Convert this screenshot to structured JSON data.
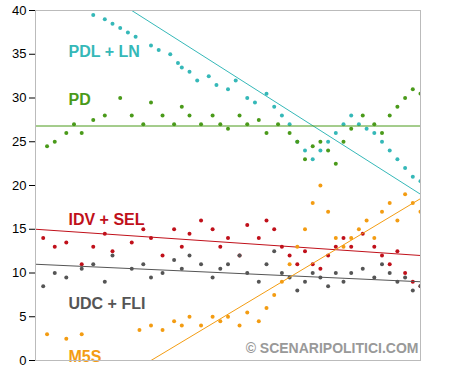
{
  "chart_data": {
    "type": "scatter",
    "xlim": [
      0,
      100
    ],
    "ylim": [
      0,
      40
    ],
    "yticks": [
      0,
      5,
      10,
      15,
      20,
      25,
      30,
      35,
      40
    ],
    "tick_labels": "y",
    "grid": false,
    "annotations": [
      "© SCENARIPOLITICI.COM"
    ],
    "series": [
      {
        "name": "PDL + LN",
        "color": "#35b8b8",
        "x": [
          15,
          18,
          20,
          22,
          24,
          26,
          30,
          32,
          35,
          37,
          38,
          40,
          42,
          45,
          47,
          50,
          52,
          55,
          57,
          60,
          62,
          64,
          66,
          68,
          70,
          72,
          74,
          76,
          78,
          80,
          82,
          84,
          86,
          88,
          90,
          92,
          94,
          96,
          98,
          100
        ],
        "values": [
          39.5,
          39,
          38.5,
          38,
          37.5,
          37,
          36,
          35.5,
          35,
          34,
          33.5,
          33,
          32,
          32.5,
          31.5,
          31,
          32,
          30,
          29.5,
          30.5,
          29,
          28,
          27,
          25,
          24,
          23,
          24,
          25,
          26,
          27,
          28,
          27,
          26.5,
          26,
          25,
          24,
          23,
          22,
          21,
          20.5
        ],
        "trend": {
          "x": [
            25,
            100
          ],
          "values": [
            40,
            19
          ]
        }
      },
      {
        "name": "PD",
        "color": "#4a9a1a",
        "x": [
          3,
          5,
          8,
          10,
          12,
          15,
          18,
          22,
          25,
          28,
          30,
          33,
          36,
          38,
          40,
          43,
          46,
          48,
          50,
          53,
          55,
          58,
          60,
          63,
          66,
          68,
          70,
          72,
          74,
          76,
          78,
          80,
          82,
          85,
          88,
          90,
          92,
          94,
          96,
          98,
          100
        ],
        "values": [
          24.5,
          25,
          26,
          27,
          26,
          27.5,
          28,
          30,
          28,
          27,
          29.5,
          28,
          27,
          29,
          28,
          27,
          28,
          27,
          26.5,
          28,
          27,
          27.5,
          26,
          27,
          26,
          25,
          23,
          24.5,
          25,
          24,
          22.5,
          25,
          26.5,
          28,
          27,
          26,
          28,
          29,
          30,
          31,
          30.5
        ],
        "trend": {
          "x": [
            0,
            100
          ],
          "values": [
            26.8,
            26.8
          ]
        }
      },
      {
        "name": "IDV + SEL",
        "color": "#c0101a",
        "x": [
          2,
          5,
          8,
          12,
          15,
          18,
          20,
          25,
          28,
          30,
          33,
          36,
          38,
          40,
          43,
          46,
          48,
          50,
          53,
          55,
          58,
          60,
          62,
          64,
          66,
          68,
          70,
          72,
          74,
          76,
          78,
          80,
          82,
          85,
          88,
          90,
          92,
          94,
          96,
          98,
          100
        ],
        "values": [
          14,
          13,
          13.5,
          11,
          13,
          14.5,
          12.5,
          13.5,
          15,
          14,
          12,
          15,
          13,
          14.5,
          16,
          15,
          13,
          14,
          12,
          15.5,
          14,
          16,
          15,
          13,
          12,
          11,
          12.5,
          11,
          10.5,
          12,
          13,
          14,
          13,
          14.5,
          13,
          12,
          11,
          12.5,
          10,
          9,
          8.5
        ],
        "trend": {
          "x": [
            0,
            100
          ],
          "values": [
            15,
            12
          ]
        }
      },
      {
        "name": "UDC + FLI",
        "color": "#555555",
        "x": [
          2,
          5,
          8,
          12,
          15,
          18,
          20,
          25,
          28,
          30,
          33,
          36,
          38,
          40,
          43,
          46,
          48,
          50,
          53,
          55,
          58,
          60,
          62,
          64,
          66,
          68,
          70,
          72,
          74,
          76,
          78,
          80,
          82,
          85,
          88,
          90,
          92,
          94,
          96,
          98,
          100
        ],
        "values": [
          8.5,
          10,
          9.5,
          10.5,
          11,
          9,
          12,
          10.5,
          11,
          9.5,
          10,
          11.5,
          10.5,
          12,
          11,
          9.5,
          10.5,
          11,
          12,
          10,
          9,
          11,
          12.5,
          10,
          9.5,
          8,
          9,
          10,
          9.5,
          8.5,
          10,
          9,
          10,
          10.5,
          9.5,
          11,
          10,
          9,
          9.5,
          8,
          8.5
        ],
        "trend": {
          "x": [
            0,
            100
          ],
          "values": [
            11,
            9
          ]
        }
      },
      {
        "name": "M5S",
        "color": "#f39c12",
        "x": [
          3,
          8,
          12,
          27,
          30,
          33,
          36,
          38,
          40,
          43,
          46,
          48,
          50,
          53,
          55,
          58,
          60,
          62,
          64,
          66,
          68,
          70,
          72,
          74,
          76,
          78,
          80,
          82,
          84,
          86,
          88,
          90,
          92,
          94,
          96,
          98,
          100
        ],
        "values": [
          3,
          2.5,
          3,
          3.5,
          4,
          3.5,
          4.5,
          4,
          5,
          4,
          5,
          4.5,
          5,
          4,
          5.5,
          4.5,
          6,
          7.5,
          9,
          11,
          13,
          15,
          18,
          20,
          17,
          14,
          13,
          14,
          15,
          16,
          14,
          17,
          18,
          16,
          19,
          18,
          17
        ],
        "trend": {
          "x": [
            30,
            100
          ],
          "values": [
            0,
            18.5
          ]
        }
      }
    ]
  }
}
